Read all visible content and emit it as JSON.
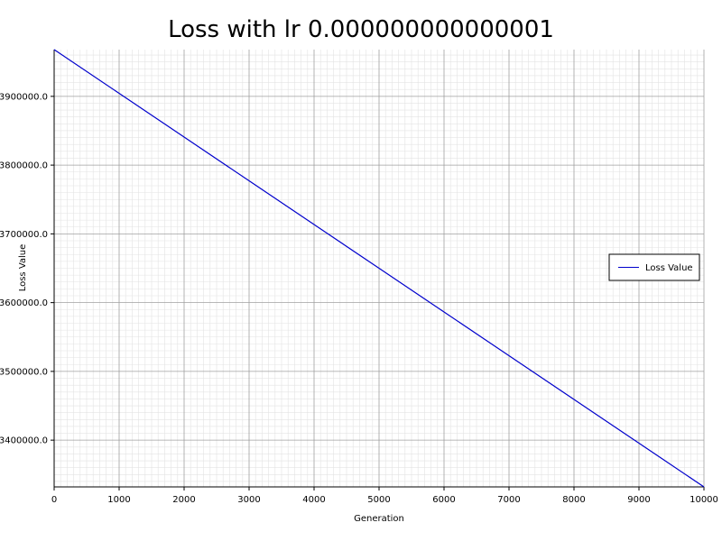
{
  "chart_data": {
    "type": "line",
    "title": "Loss with lr 0.000000000000001",
    "xlabel": "Generation",
    "ylabel": "Loss Value",
    "xlim": [
      0,
      10000
    ],
    "ylim": [
      3332000,
      3968000
    ],
    "x_ticks": [
      0,
      1000,
      2000,
      3000,
      4000,
      5000,
      6000,
      7000,
      8000,
      9000,
      10000
    ],
    "x_tick_labels": [
      "0",
      "1000",
      "2000",
      "3000",
      "4000",
      "5000",
      "6000",
      "7000",
      "8000",
      "9000",
      "10000"
    ],
    "y_ticks": [
      3400000,
      3500000,
      3600000,
      3700000,
      3800000,
      3900000
    ],
    "y_tick_labels": [
      "3400000.0",
      "3500000.0",
      "3600000.0",
      "3700000.0",
      "3800000.0",
      "3900000.0"
    ],
    "grid": "on (major and minor)",
    "legend_position": "center-right",
    "series": [
      {
        "name": "Loss Value",
        "color": "#0000cc",
        "x": [
          0,
          1000,
          2000,
          3000,
          4000,
          5000,
          6000,
          7000,
          8000,
          9000,
          10000
        ],
        "y": [
          3968000,
          3904400,
          3840800,
          3777200,
          3713600,
          3650000,
          3586400,
          3522800,
          3459200,
          3395600,
          3332000
        ]
      }
    ]
  }
}
